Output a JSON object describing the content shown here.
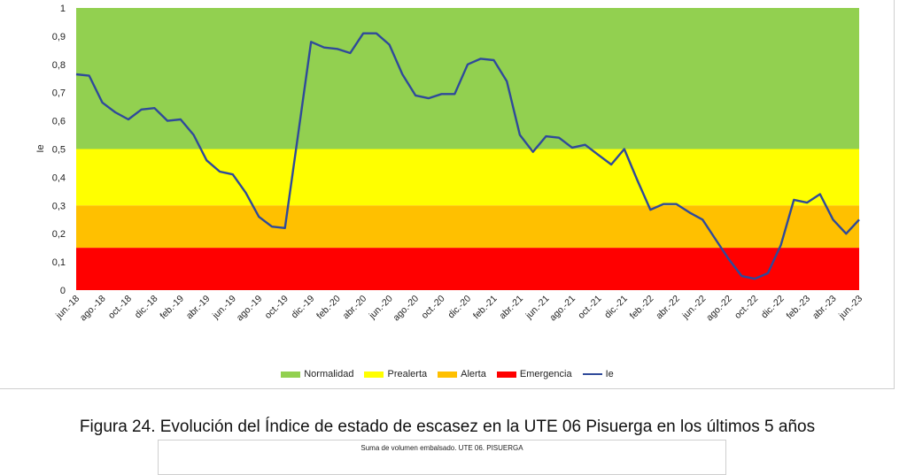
{
  "chart_data": {
    "type": "line",
    "title": "",
    "xlabel": "",
    "ylabel": "Ie",
    "ylim": [
      0,
      1
    ],
    "yticks": [
      "0",
      "0,1",
      "0,2",
      "0,3",
      "0,4",
      "0,5",
      "0,6",
      "0,7",
      "0,8",
      "0,9",
      "1"
    ],
    "grid": false,
    "legend_position": "bottom",
    "bands": [
      {
        "name": "Normalidad",
        "from": 0.5,
        "to": 1.0,
        "color": "#92d050"
      },
      {
        "name": "Prealerta",
        "from": 0.3,
        "to": 0.5,
        "color": "#ffff00"
      },
      {
        "name": "Alerta",
        "from": 0.15,
        "to": 0.3,
        "color": "#ffc000"
      },
      {
        "name": "Emergencia",
        "from": 0.0,
        "to": 0.15,
        "color": "#ff0000"
      }
    ],
    "x_labels": [
      "jun.-18",
      "ago.-18",
      "oct.-18",
      "dic.-18",
      "feb.-19",
      "abr.-19",
      "jun.-19",
      "ago.-19",
      "oct.-19",
      "dic.-19",
      "feb.-20",
      "abr.-20",
      "jun.-20",
      "ago.-20",
      "oct.-20",
      "dic.-20",
      "feb.-21",
      "abr.-21",
      "jun.-21",
      "ago.-21",
      "oct.-21",
      "dic.-21",
      "feb.-22",
      "abr.-22",
      "jun.-22",
      "ago.-22",
      "oct.-22",
      "dic.-22",
      "feb.-23",
      "abr.-23",
      "jun.-23"
    ],
    "series": [
      {
        "name": "Ie",
        "color": "#2f4a9a",
        "values": [
          0.765,
          0.76,
          0.665,
          0.63,
          0.605,
          0.64,
          0.645,
          0.6,
          0.605,
          0.55,
          0.46,
          0.42,
          0.41,
          0.345,
          0.26,
          0.225,
          0.22,
          0.55,
          0.88,
          0.86,
          0.855,
          0.84,
          0.91,
          0.91,
          0.87,
          0.765,
          0.69,
          0.68,
          0.695,
          0.695,
          0.8,
          0.82,
          0.815,
          0.74,
          0.55,
          0.49,
          0.545,
          0.54,
          0.505,
          0.515,
          0.48,
          0.445,
          0.5,
          0.39,
          0.285,
          0.305,
          0.305,
          0.275,
          0.25,
          0.18,
          0.11,
          0.05,
          0.04,
          0.06,
          0.16,
          0.32,
          0.31,
          0.34,
          0.25,
          0.2,
          0.25
        ]
      }
    ]
  },
  "legend": [
    {
      "label": "Normalidad",
      "color": "#92d050",
      "kind": "box"
    },
    {
      "label": "Prealerta",
      "color": "#ffff00",
      "kind": "box"
    },
    {
      "label": "Alerta",
      "color": "#ffc000",
      "kind": "box"
    },
    {
      "label": "Emergencia",
      "color": "#ff0000",
      "kind": "box"
    },
    {
      "label": "Ie",
      "color": "#2f4a9a",
      "kind": "line"
    }
  ],
  "caption": "Figura 24.   Evolución del Índice de estado de escasez en la UTE 06 Pisuerga en los últimos 5 años",
  "next_chart_title": "Suma de volumen embalsado. UTE 06. PISUERGA"
}
